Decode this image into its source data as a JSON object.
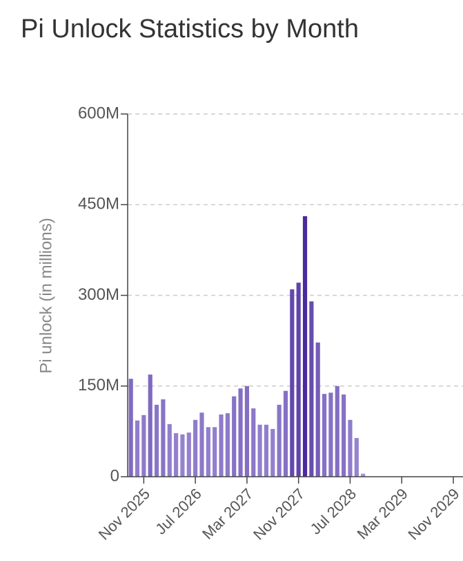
{
  "chart_data": {
    "type": "bar",
    "title": "Pi Unlock Statistics by Month",
    "y_label": "Pi unlock (in millions)",
    "x": [
      "2025-09",
      "2025-10",
      "2025-11",
      "2025-12",
      "2026-01",
      "2026-02",
      "2026-03",
      "2026-04",
      "2026-05",
      "2026-06",
      "2026-07",
      "2026-08",
      "2026-09",
      "2026-10",
      "2026-11",
      "2026-12",
      "2027-01",
      "2027-02",
      "2027-03",
      "2027-04",
      "2027-05",
      "2027-06",
      "2027-07",
      "2027-08",
      "2027-09",
      "2027-10",
      "2027-11",
      "2027-12",
      "2028-01",
      "2028-02",
      "2028-03",
      "2028-04",
      "2028-05",
      "2028-06",
      "2028-07",
      "2028-08",
      "2028-09"
    ],
    "values": [
      162,
      93,
      102,
      169,
      119,
      128,
      87,
      72,
      70,
      73,
      94,
      106,
      82,
      82,
      103,
      105,
      133,
      146,
      150,
      113,
      86,
      86,
      79,
      119,
      142,
      310,
      321,
      431,
      290,
      222,
      137,
      139,
      150,
      136,
      94,
      64,
      5
    ],
    "color_range": [
      "#a393d8",
      "#4a2a9c"
    ],
    "xlim": [
      "2025-09",
      "2029-12"
    ],
    "xticks": [
      {
        "value": "2025-11",
        "label": "Nov 2025"
      },
      {
        "value": "2026-07",
        "label": "Jul 2026"
      },
      {
        "value": "2027-03",
        "label": "Mar 2027"
      },
      {
        "value": "2027-11",
        "label": "Nov 2027"
      },
      {
        "value": "2028-07",
        "label": "Jul 2028"
      },
      {
        "value": "2029-03",
        "label": "Mar 2029"
      },
      {
        "value": "2029-11",
        "label": "Nov 2029"
      }
    ],
    "ylim": [
      0,
      600
    ],
    "yticks": [
      0,
      {
        "value": 150,
        "label": "150M"
      },
      {
        "value": 300,
        "label": "300M"
      },
      {
        "value": 450,
        "label": "450M"
      },
      {
        "value": 600,
        "label": "600M"
      }
    ],
    "grid": true
  }
}
